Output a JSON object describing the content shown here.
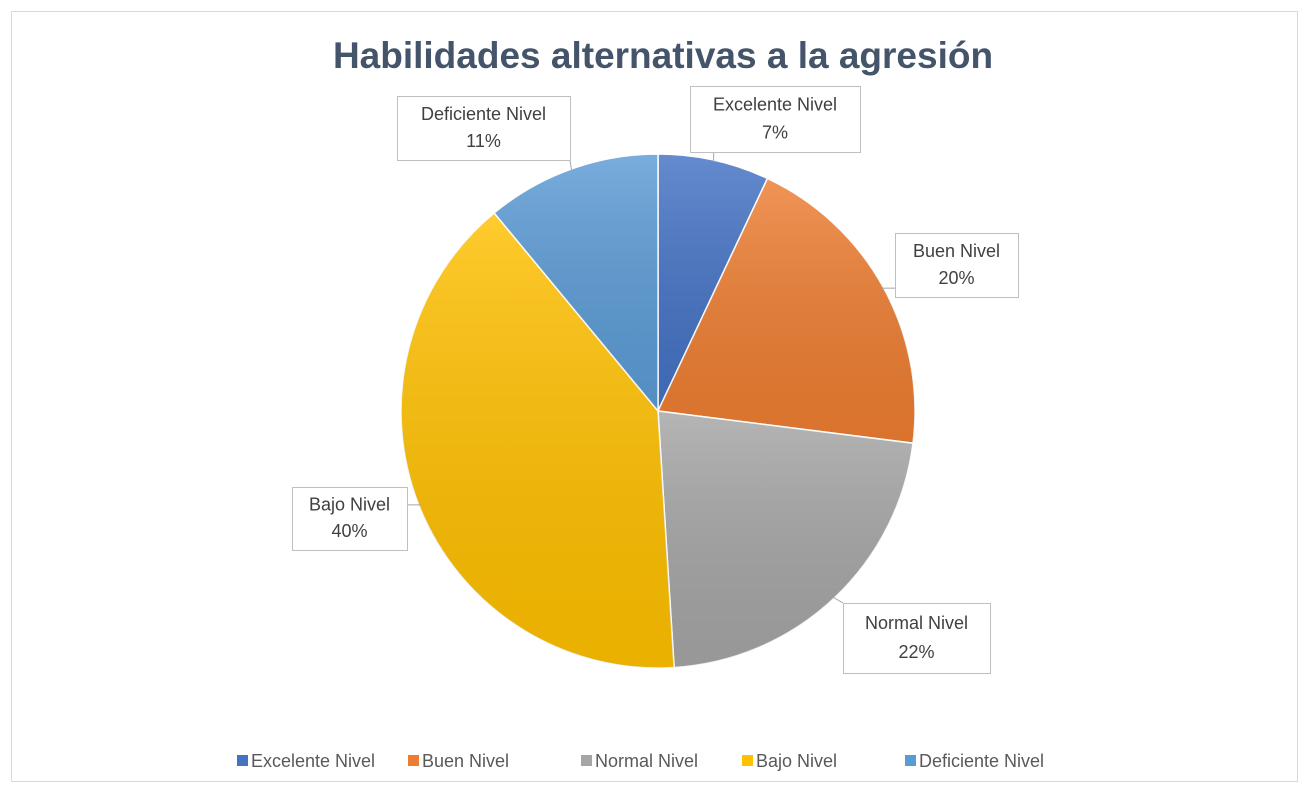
{
  "chart_data": {
    "type": "pie",
    "title": "Habilidades alternativas a la agresión",
    "categories": [
      "Excelente Nivel",
      "Buen Nivel",
      "Normal Nivel",
      "Bajo Nivel",
      "Deficiente Nivel"
    ],
    "values": [
      7,
      20,
      22,
      40,
      11
    ],
    "value_labels": [
      "7%",
      "20%",
      "22%",
      "40%",
      "11%"
    ],
    "colors": [
      "#4472c4",
      "#ed7d31",
      "#a5a5a5",
      "#ffc000",
      "#5b9bd5"
    ],
    "legend": "bottom"
  }
}
